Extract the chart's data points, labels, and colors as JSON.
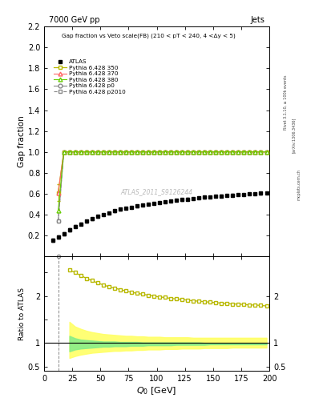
{
  "title_top": "7000 GeV pp",
  "title_right": "Jets",
  "plot_title": "Gap fraction vs Veto scale(FB) (210 < pT < 240, 4 <Δy < 5)",
  "xlabel": "Q$_0$ [GeV]",
  "ylabel_main": "Gap fraction",
  "ylabel_ratio": "Ratio to ATLAS",
  "watermark": "ATLAS_2011_S9126244",
  "rivet_label": "Rivet 3.1.10, ≥ 100k events",
  "arxiv_label": "[arXiv:1306.3436]",
  "mcplots_label": "mcplots.cern.ch",
  "xlim": [
    0,
    200
  ],
  "ylim_main": [
    0.0,
    2.2
  ],
  "ylim_ratio": [
    0.4,
    2.85
  ],
  "atlas_x": [
    7.5,
    12.5,
    17.5,
    22.5,
    27.5,
    32.5,
    37.5,
    42.5,
    47.5,
    52.5,
    57.5,
    62.5,
    67.5,
    72.5,
    77.5,
    82.5,
    87.5,
    92.5,
    97.5,
    102.5,
    107.5,
    112.5,
    117.5,
    122.5,
    127.5,
    132.5,
    137.5,
    142.5,
    147.5,
    152.5,
    157.5,
    162.5,
    167.5,
    172.5,
    177.5,
    182.5,
    187.5,
    192.5,
    197.5
  ],
  "atlas_y": [
    0.155,
    0.185,
    0.215,
    0.255,
    0.285,
    0.31,
    0.335,
    0.36,
    0.38,
    0.4,
    0.415,
    0.435,
    0.45,
    0.46,
    0.47,
    0.48,
    0.49,
    0.498,
    0.506,
    0.515,
    0.522,
    0.53,
    0.536,
    0.542,
    0.548,
    0.554,
    0.56,
    0.564,
    0.569,
    0.573,
    0.578,
    0.582,
    0.586,
    0.59,
    0.593,
    0.597,
    0.6,
    0.603,
    0.606
  ],
  "atlas_yerr": [
    0.015,
    0.015,
    0.015,
    0.015,
    0.012,
    0.012,
    0.012,
    0.012,
    0.01,
    0.01,
    0.01,
    0.01,
    0.009,
    0.009,
    0.009,
    0.009,
    0.009,
    0.009,
    0.009,
    0.009,
    0.009,
    0.009,
    0.009,
    0.009,
    0.009,
    0.009,
    0.009,
    0.009,
    0.009,
    0.009,
    0.009,
    0.009,
    0.009,
    0.009,
    0.009,
    0.009,
    0.009,
    0.009,
    0.009
  ],
  "mc_x": [
    12.5,
    17.5,
    22.5,
    27.5,
    32.5,
    37.5,
    42.5,
    47.5,
    52.5,
    57.5,
    62.5,
    67.5,
    72.5,
    77.5,
    82.5,
    87.5,
    92.5,
    97.5,
    102.5,
    107.5,
    112.5,
    117.5,
    122.5,
    127.5,
    132.5,
    137.5,
    142.5,
    147.5,
    152.5,
    157.5,
    162.5,
    167.5,
    172.5,
    177.5,
    182.5,
    187.5,
    192.5,
    197.5
  ],
  "mc350_y": [
    0.61,
    1.0,
    1.0,
    1.0,
    1.0,
    1.0,
    1.0,
    1.0,
    1.0,
    1.0,
    1.0,
    1.0,
    1.0,
    1.0,
    1.0,
    1.0,
    1.0,
    1.0,
    1.0,
    1.0,
    1.0,
    1.0,
    1.0,
    1.0,
    1.0,
    1.0,
    1.0,
    1.0,
    1.0,
    1.0,
    1.0,
    1.0,
    1.0,
    1.0,
    1.0,
    1.0,
    1.0,
    1.0
  ],
  "mc350_yerr": [
    0.08,
    0.0,
    0.0,
    0.0,
    0.0,
    0.0,
    0.0,
    0.0,
    0.0,
    0.0,
    0.0,
    0.0,
    0.0,
    0.0,
    0.0,
    0.0,
    0.0,
    0.0,
    0.0,
    0.0,
    0.0,
    0.0,
    0.0,
    0.0,
    0.0,
    0.0,
    0.0,
    0.0,
    0.0,
    0.0,
    0.0,
    0.0,
    0.0,
    0.0,
    0.0,
    0.0,
    0.0,
    0.0
  ],
  "mc370_y": [
    0.61,
    1.0,
    1.0,
    1.0,
    1.0,
    1.0,
    1.0,
    1.0,
    1.0,
    1.0,
    1.0,
    1.0,
    1.0,
    1.0,
    1.0,
    1.0,
    1.0,
    1.0,
    1.0,
    1.0,
    1.0,
    1.0,
    1.0,
    1.0,
    1.0,
    1.0,
    1.0,
    1.0,
    1.0,
    1.0,
    1.0,
    1.0,
    1.0,
    1.0,
    1.0,
    1.0,
    1.0,
    1.0
  ],
  "mc380_y": [
    0.44,
    1.0,
    1.0,
    1.0,
    1.0,
    1.0,
    1.0,
    1.0,
    1.0,
    1.0,
    1.0,
    1.0,
    1.0,
    1.0,
    1.0,
    1.0,
    1.0,
    1.0,
    1.0,
    1.0,
    1.0,
    1.0,
    1.0,
    1.0,
    1.0,
    1.0,
    1.0,
    1.0,
    1.0,
    1.0,
    1.0,
    1.0,
    1.0,
    1.0,
    1.0,
    1.0,
    1.0,
    1.0
  ],
  "mcp0_y": [
    0.34,
    1.0,
    1.0,
    1.0,
    1.0,
    1.0,
    1.0,
    1.0,
    1.0,
    1.0,
    1.0,
    1.0,
    1.0,
    1.0,
    1.0,
    1.0,
    1.0,
    1.0,
    1.0,
    1.0,
    1.0,
    1.0,
    1.0,
    1.0,
    1.0,
    1.0,
    1.0,
    1.0,
    1.0,
    1.0,
    1.0,
    1.0,
    1.0,
    1.0,
    1.0,
    1.0,
    1.0,
    1.0
  ],
  "mcp2010_y": [
    0.34,
    1.0,
    1.0,
    1.0,
    1.0,
    1.0,
    1.0,
    1.0,
    1.0,
    1.0,
    1.0,
    1.0,
    1.0,
    1.0,
    1.0,
    1.0,
    1.0,
    1.0,
    1.0,
    1.0,
    1.0,
    1.0,
    1.0,
    1.0,
    1.0,
    1.0,
    1.0,
    1.0,
    1.0,
    1.0,
    1.0,
    1.0,
    1.0,
    1.0,
    1.0,
    1.0,
    1.0,
    1.0
  ],
  "ratio350_x": [
    22.5,
    27.5,
    32.5,
    37.5,
    42.5,
    47.5,
    52.5,
    57.5,
    62.5,
    67.5,
    72.5,
    77.5,
    82.5,
    87.5,
    92.5,
    97.5,
    102.5,
    107.5,
    112.5,
    117.5,
    122.5,
    127.5,
    132.5,
    137.5,
    142.5,
    147.5,
    152.5,
    157.5,
    162.5,
    167.5,
    172.5,
    177.5,
    182.5,
    187.5,
    192.5,
    197.5
  ],
  "ratio350_y": [
    2.56,
    2.5,
    2.44,
    2.38,
    2.33,
    2.28,
    2.24,
    2.2,
    2.17,
    2.14,
    2.11,
    2.08,
    2.06,
    2.04,
    2.02,
    2.0,
    1.98,
    1.97,
    1.95,
    1.94,
    1.93,
    1.91,
    1.9,
    1.89,
    1.88,
    1.87,
    1.86,
    1.85,
    1.84,
    1.83,
    1.83,
    1.82,
    1.81,
    1.81,
    1.8,
    1.79
  ],
  "band_yellow_upper": [
    1.45,
    1.35,
    1.3,
    1.26,
    1.23,
    1.21,
    1.19,
    1.18,
    1.17,
    1.16,
    1.15,
    1.15,
    1.14,
    1.14,
    1.13,
    1.13,
    1.13,
    1.12,
    1.12,
    1.12,
    1.12,
    1.12,
    1.11,
    1.11,
    1.11,
    1.11,
    1.11,
    1.11,
    1.11,
    1.11,
    1.11,
    1.11,
    1.11,
    1.11,
    1.11,
    1.11
  ],
  "band_yellow_lower": [
    0.68,
    0.72,
    0.75,
    0.77,
    0.79,
    0.8,
    0.81,
    0.82,
    0.83,
    0.83,
    0.84,
    0.84,
    0.85,
    0.85,
    0.86,
    0.86,
    0.86,
    0.87,
    0.87,
    0.87,
    0.88,
    0.88,
    0.88,
    0.88,
    0.89,
    0.89,
    0.89,
    0.89,
    0.89,
    0.9,
    0.9,
    0.9,
    0.9,
    0.9,
    0.9,
    0.9
  ],
  "band_green_upper": [
    1.15,
    1.1,
    1.07,
    1.06,
    1.05,
    1.04,
    1.03,
    1.03,
    1.03,
    1.02,
    1.02,
    1.02,
    1.02,
    1.01,
    1.01,
    1.01,
    1.01,
    1.01,
    1.01,
    1.01,
    1.01,
    1.01,
    1.01,
    1.01,
    1.0,
    1.0,
    1.0,
    1.0,
    1.0,
    1.0,
    1.0,
    1.0,
    1.0,
    1.0,
    1.0,
    1.0
  ],
  "band_green_lower": [
    0.82,
    0.86,
    0.88,
    0.89,
    0.9,
    0.91,
    0.92,
    0.92,
    0.93,
    0.93,
    0.93,
    0.94,
    0.94,
    0.94,
    0.95,
    0.95,
    0.95,
    0.95,
    0.95,
    0.96,
    0.96,
    0.96,
    0.96,
    0.96,
    0.96,
    0.97,
    0.97,
    0.97,
    0.97,
    0.97,
    0.97,
    0.97,
    0.97,
    0.97,
    0.97,
    0.97
  ],
  "color_350": "#b8b800",
  "color_370": "#ff6666",
  "color_380": "#66cc00",
  "color_p0": "#888888",
  "color_p2010": "#888888",
  "color_yellow_band": "#ffff66",
  "color_green_band": "#88ee88",
  "ratio_p0_x": 12.5,
  "ratio_p0_y": 2.85
}
